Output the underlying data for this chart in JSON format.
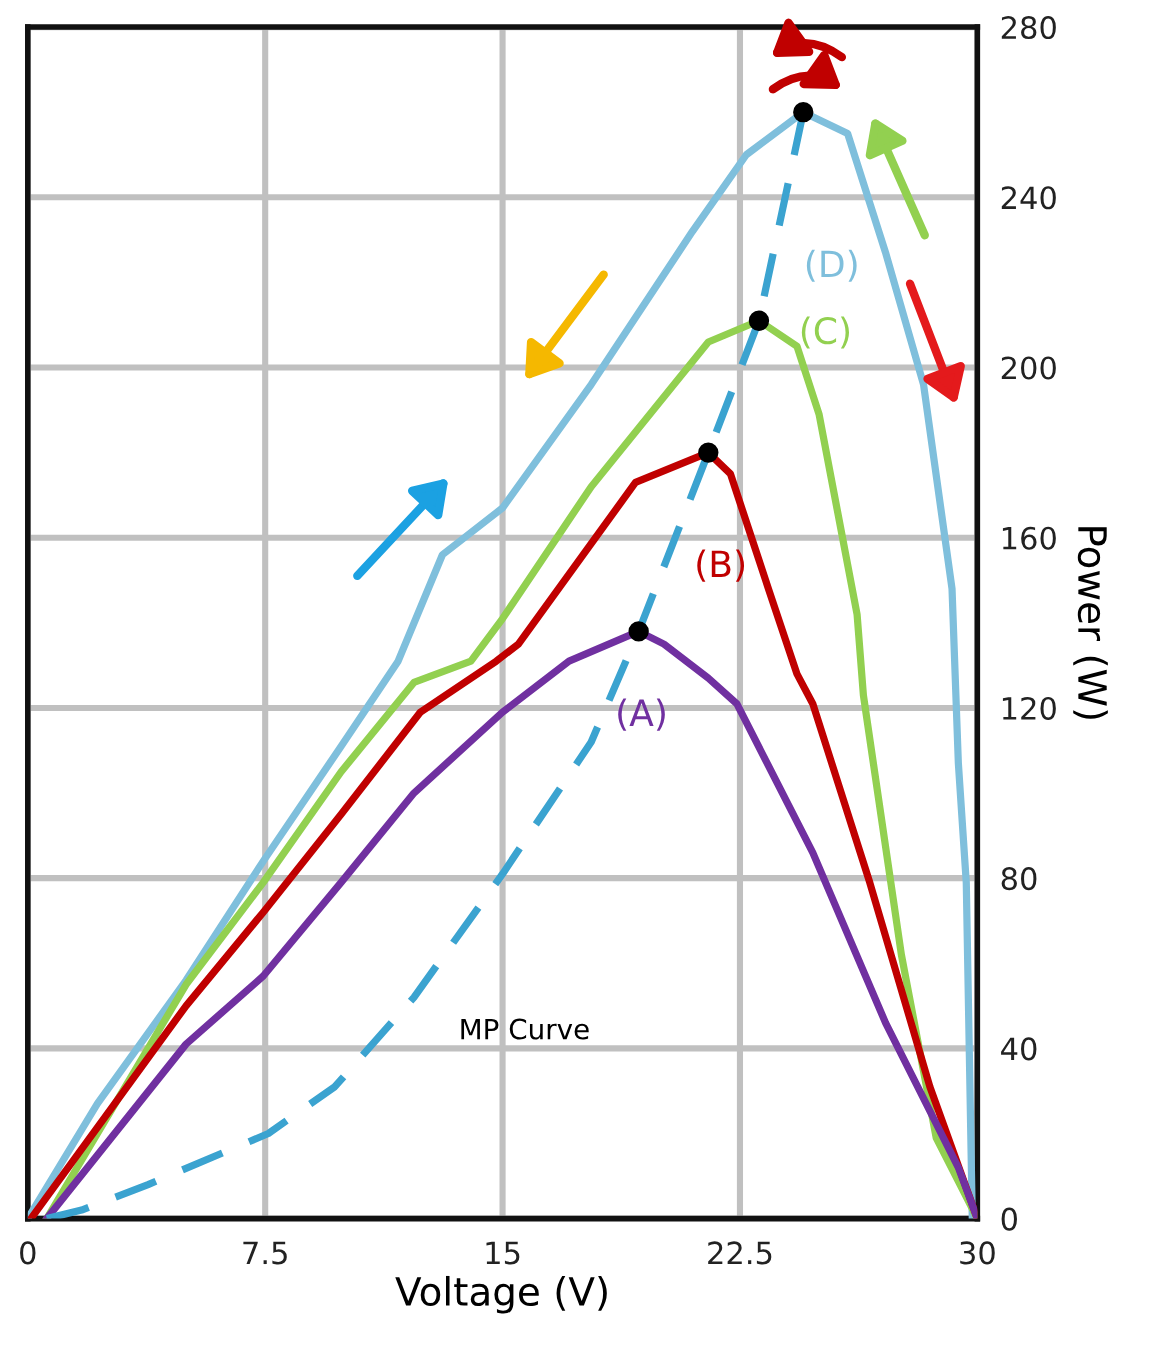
{
  "chart_data": {
    "type": "line",
    "xlabel": "Voltage (V)",
    "ylabel": "Power (W)",
    "xlim": [
      0,
      30
    ],
    "xticks": [
      0,
      7.5,
      15,
      22.5,
      30
    ],
    "ylim": [
      0,
      280
    ],
    "yticks": [
      0,
      40,
      80,
      120,
      160,
      200,
      240,
      280
    ],
    "grid": true,
    "line_style": "solid",
    "marker": "none",
    "annotations": [
      "MP Curve"
    ],
    "series": [
      {
        "name": "(D)",
        "color": "#7fbfdc",
        "x": [
          0,
          2.2,
          5,
          7.44,
          9.9,
          11.7,
          13.1,
          15,
          17.8,
          21,
          22.7,
          24.5,
          25.9,
          27.1,
          28.3,
          29.2,
          29.4,
          29.65,
          29.84
        ],
        "values": [
          0,
          27,
          56,
          84,
          111,
          131,
          156,
          167,
          196,
          232,
          250,
          260,
          255,
          227,
          196,
          148,
          107,
          79,
          0
        ]
      },
      {
        "name": "(C)",
        "color": "#92d050",
        "x": [
          0.6,
          5,
          7.44,
          9.9,
          12.2,
          14,
          15,
          17.8,
          21.5,
          23.1,
          24.3,
          25,
          26.2,
          26.4,
          27.6,
          28.7,
          30
        ],
        "values": [
          0,
          55,
          79,
          105,
          126,
          131,
          141,
          172,
          206,
          211,
          205,
          189,
          142,
          123,
          62,
          19,
          0
        ]
      },
      {
        "name": "(B)",
        "color": "#c00000",
        "x": [
          0.1,
          5,
          7.44,
          9.9,
          12.4,
          14.8,
          15.5,
          19.2,
          21.5,
          22.2,
          23.4,
          24.3,
          24.8,
          26.6,
          28.5,
          30
        ],
        "values": [
          0,
          50,
          72,
          95,
          119,
          131,
          135,
          173,
          180,
          175,
          148,
          128,
          121,
          79,
          31,
          0
        ]
      },
      {
        "name": "(A)",
        "color": "#7030a0",
        "x": [
          0.6,
          5,
          7.44,
          9.9,
          12.2,
          15,
          17.1,
          19.3,
          20.1,
          21.5,
          22.4,
          24.8,
          27.1,
          29.4,
          30
        ],
        "values": [
          0,
          41,
          57,
          79,
          100,
          119,
          131,
          138,
          135,
          127,
          121,
          86,
          46,
          12,
          0
        ]
      },
      {
        "color": "#3ba3d0",
        "line_style": "dashed",
        "x": [
          0.6,
          1.7,
          3.8,
          7.6,
          9.7,
          12.2,
          15,
          17.8,
          19.3,
          21.5,
          23.1,
          24.5
        ],
        "values": [
          0,
          2,
          8,
          20,
          31,
          52,
          81,
          112,
          138,
          180,
          211,
          260
        ]
      },
      {
        "type": "scatter",
        "color": "#000000",
        "marker": "circle",
        "x": [
          19.3,
          21.5,
          23.1,
          24.5
        ],
        "values": [
          138,
          180,
          211,
          260
        ]
      }
    ]
  }
}
